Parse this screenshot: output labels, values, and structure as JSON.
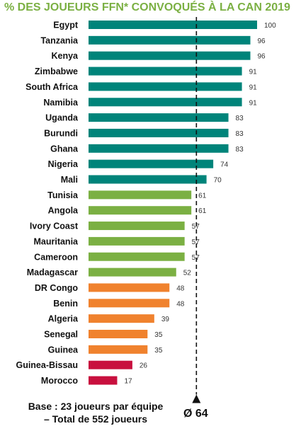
{
  "chart_data": {
    "type": "bar",
    "orientation": "horizontal",
    "title": "% DES JOUEURS FFN* CONVOQUÉS À LA CAN 2019",
    "categories": [
      "Egypt",
      "Tanzania",
      "Kenya",
      "Zimbabwe",
      "South Africa",
      "Namibia",
      "Uganda",
      "Burundi",
      "Ghana",
      "Nigeria",
      "Mali",
      "Tunisia",
      "Angola",
      "Ivory Coast",
      "Mauritania",
      "Cameroon",
      "Madagascar",
      "DR Congo",
      "Benin",
      "Algeria",
      "Senegal",
      "Guinea",
      "Guinea-Bissau",
      "Morocco"
    ],
    "values": [
      100,
      96,
      96,
      91,
      91,
      91,
      83,
      83,
      83,
      74,
      70,
      61,
      61,
      57,
      57,
      57,
      52,
      48,
      48,
      39,
      35,
      35,
      26,
      17
    ],
    "xlim": [
      0,
      100
    ],
    "grid": false,
    "reference_line": {
      "value": 64,
      "label": "Ø 64"
    },
    "colors": {
      "title": "#7bb043",
      "bar_groups": [
        "#00847a",
        "#7bb043",
        "#f0822e",
        "#c8103e"
      ]
    },
    "bar_color_index": [
      0,
      0,
      0,
      0,
      0,
      0,
      0,
      0,
      0,
      0,
      0,
      1,
      1,
      1,
      1,
      1,
      1,
      2,
      2,
      2,
      2,
      2,
      3,
      3
    ]
  },
  "footnote": {
    "line1": "Base : 23 joueurs par équipe",
    "line2": "– Total de 552 joueurs"
  }
}
